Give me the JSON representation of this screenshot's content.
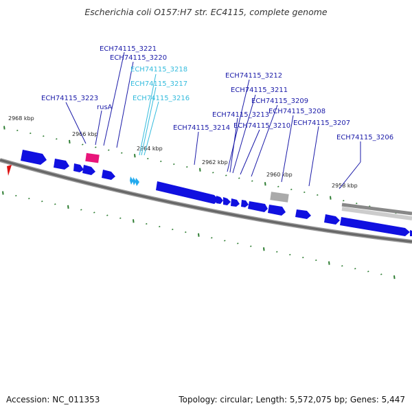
{
  "title": "Escherichia coli O157:H7 str. EC4115, complete genome",
  "accession": "Accession: NC_011353",
  "summary": "Topology: circular; Length: 5,572,075 bp; Genes: 5,447",
  "kbp_labels": [
    "2968 kbp",
    "2966 kbp",
    "2964 kbp",
    "2962 kbp",
    "2960 kbp",
    "2958 kbp"
  ],
  "colors": {
    "label_dark": "#1a1aa8",
    "label_light": "#33bbdd",
    "feature_blue": "#1010e0",
    "feature_light": "#22aaee",
    "feature_pink": "#e8157a",
    "feature_gray": "#aaaaaa",
    "tick": "#2e7d32",
    "backbone": "#777777",
    "marker": "#dd1111"
  },
  "gene_labels": [
    {
      "text": "ECH74115_3221",
      "color": "dark"
    },
    {
      "text": "ECH74115_3220",
      "color": "dark"
    },
    {
      "text": "ECH74115_3218",
      "color": "light"
    },
    {
      "text": "ECH74115_3217",
      "color": "light"
    },
    {
      "text": "ECH74115_3216",
      "color": "light"
    },
    {
      "text": "ECH74115_3223",
      "color": "dark"
    },
    {
      "text": "rusA",
      "color": "dark"
    },
    {
      "text": "ECH74115_3212",
      "color": "dark"
    },
    {
      "text": "ECH74115_3211",
      "color": "dark"
    },
    {
      "text": "ECH74115_3209",
      "color": "dark"
    },
    {
      "text": "ECH74115_3208",
      "color": "dark"
    },
    {
      "text": "ECH74115_3213",
      "color": "dark"
    },
    {
      "text": "ECH74115_3210",
      "color": "dark"
    },
    {
      "text": "ECH74115_3214",
      "color": "dark"
    },
    {
      "text": "ECH74115_3207",
      "color": "dark"
    },
    {
      "text": "ECH74115_3206",
      "color": "dark"
    }
  ]
}
